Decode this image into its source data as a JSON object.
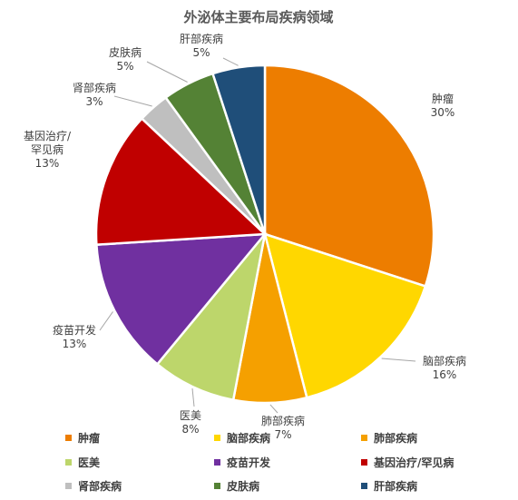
{
  "chart_data": {
    "type": "pie",
    "title": "外泌体主要布局疾病领域",
    "unit": "%",
    "slices": [
      {
        "label": "肿瘤",
        "value": 30,
        "value_text": "30%",
        "color": "#ED7D00"
      },
      {
        "label": "脑部疾病",
        "value": 16,
        "value_text": "16%",
        "color": "#FFD700"
      },
      {
        "label": "肺部疾病",
        "value": 7,
        "value_text": "7%",
        "color": "#F5A000"
      },
      {
        "label": "医美",
        "value": 8,
        "value_text": "8%",
        "color": "#BDD66B"
      },
      {
        "label": "疫苗开发",
        "value": 13,
        "value_text": "13%",
        "color": "#7030A0"
      },
      {
        "label": "基因治疗/罕见病",
        "value": 13,
        "value_text": "13%",
        "color": "#C00000"
      },
      {
        "label": "肾部疾病",
        "value": 3,
        "value_text": "3%",
        "color": "#BFBFBF"
      },
      {
        "label": "皮肤病",
        "value": 5,
        "value_text": "5%",
        "color": "#548235"
      },
      {
        "label": "肝部疾病",
        "value": 5,
        "value_text": "5%",
        "color": "#1F4E79"
      }
    ],
    "legend_position": "bottom"
  }
}
